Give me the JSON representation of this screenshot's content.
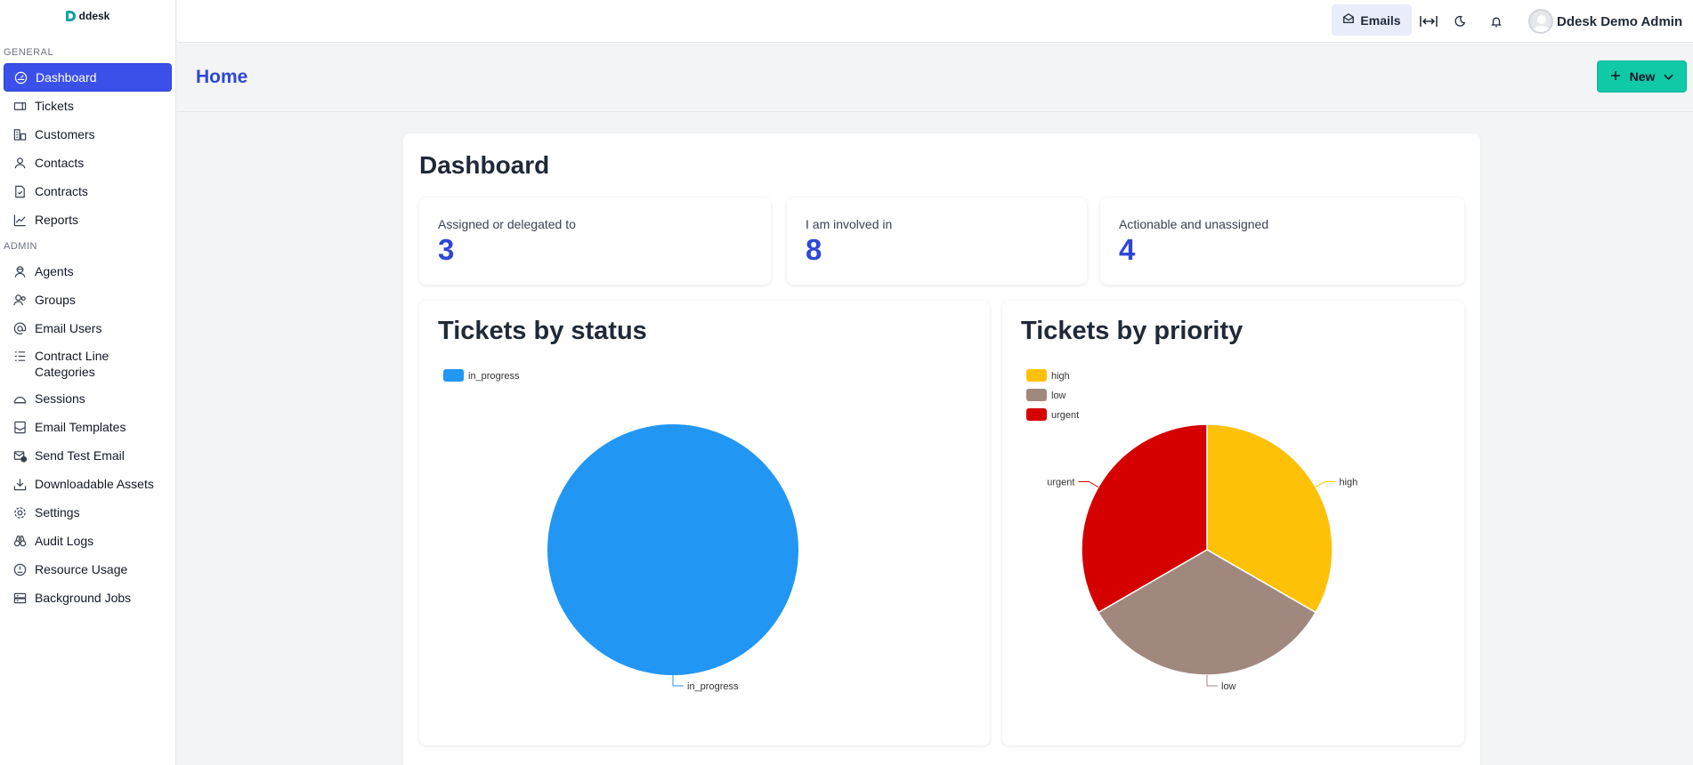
{
  "app": {
    "logo_text": "ddesk"
  },
  "sidebar": {
    "general_title": "GENERAL",
    "admin_title": "ADMIN",
    "general_items": [
      {
        "label": "Dashboard",
        "icon": "dashboard-icon",
        "active": true
      },
      {
        "label": "Tickets",
        "icon": "ticket-icon"
      },
      {
        "label": "Customers",
        "icon": "building-icon"
      },
      {
        "label": "Contacts",
        "icon": "contact-icon"
      },
      {
        "label": "Contracts",
        "icon": "contract-icon"
      },
      {
        "label": "Reports",
        "icon": "chart-line-icon"
      }
    ],
    "admin_items": [
      {
        "label": "Agents",
        "icon": "agent-icon"
      },
      {
        "label": "Groups",
        "icon": "group-icon"
      },
      {
        "label": "Email Users",
        "icon": "at-icon"
      },
      {
        "label": "Contract Line Categories",
        "icon": "list-icon"
      },
      {
        "label": "Sessions",
        "icon": "dome-icon"
      },
      {
        "label": "Email Templates",
        "icon": "template-icon"
      },
      {
        "label": "Send Test Email",
        "icon": "mail-check-icon"
      },
      {
        "label": "Downloadable Assets",
        "icon": "download-icon"
      },
      {
        "label": "Settings",
        "icon": "gear-icon"
      },
      {
        "label": "Audit Logs",
        "icon": "binoculars-icon"
      },
      {
        "label": "Resource Usage",
        "icon": "gauge-icon"
      },
      {
        "label": "Background Jobs",
        "icon": "server-icon"
      }
    ]
  },
  "topbar": {
    "emails_label": "Emails",
    "user_name": "Ddesk Demo Admin",
    "icons": [
      "expand-width-icon",
      "moon-icon",
      "bell-icon"
    ]
  },
  "header": {
    "title": "Home",
    "new_label": "New"
  },
  "dashboard": {
    "title": "Dashboard",
    "stats": [
      {
        "label": "Assigned or delegated to",
        "value": "3"
      },
      {
        "label": "I am involved in",
        "value": "8"
      },
      {
        "label": "Actionable and unassigned",
        "value": "4"
      }
    ]
  },
  "chart_data": [
    {
      "type": "pie",
      "title": "Tickets by status",
      "legend_position": "top-left",
      "categories": [
        "in_progress"
      ],
      "values": [
        1
      ],
      "colors": [
        "#2196f3"
      ]
    },
    {
      "type": "pie",
      "title": "Tickets by priority",
      "legend_position": "top-left",
      "categories": [
        "high",
        "low",
        "urgent"
      ],
      "values": [
        1,
        1,
        1
      ],
      "colors": [
        "#ffc107",
        "#a1887f",
        "#d50000"
      ]
    }
  ]
}
